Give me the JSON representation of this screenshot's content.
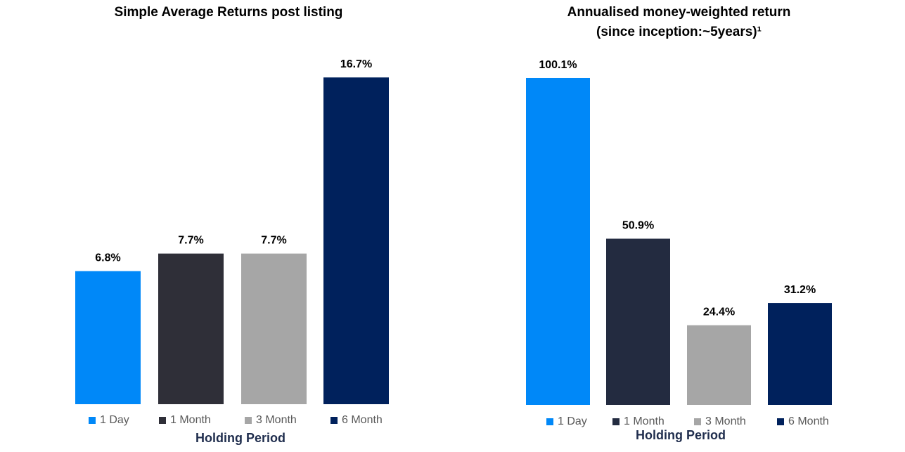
{
  "chart_data": [
    {
      "type": "bar",
      "title": "Simple Average Returns post listing",
      "xlabel": "Holding Period",
      "ylabel": "",
      "ylim": [
        0,
        18
      ],
      "grid": false,
      "legend_position": "bottom",
      "categories": [
        "1 Day",
        "1 Month",
        "3 Month",
        "6 Month"
      ],
      "values": [
        6.8,
        7.7,
        7.7,
        16.7
      ],
      "data_labels": [
        "6.8%",
        "7.7%",
        "7.7%",
        "16.7%"
      ],
      "colors": [
        "#0088f8",
        "#2f2f38",
        "#a6a6a6",
        "#00215c"
      ]
    },
    {
      "type": "bar",
      "title": "Annualised money-weighted return",
      "subtitle": "(since inception:~5years)¹",
      "xlabel": "Holding Period",
      "ylabel": "",
      "ylim": [
        0,
        110
      ],
      "grid": false,
      "legend_position": "bottom",
      "categories": [
        "1 Day",
        "1 Month",
        "3 Month",
        "6 Month"
      ],
      "values": [
        100.1,
        50.9,
        24.4,
        31.2
      ],
      "data_labels": [
        "100.1%",
        "50.9%",
        "24.4%",
        "31.2%"
      ],
      "colors": [
        "#0088f8",
        "#232b40",
        "#a6a6a6",
        "#00215c"
      ]
    }
  ]
}
